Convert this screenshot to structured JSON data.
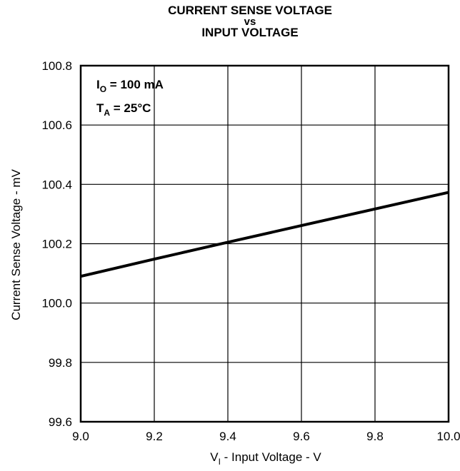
{
  "chart_data": {
    "type": "line",
    "title_lines": [
      "CURRENT SENSE VOLTAGE",
      "vs",
      "INPUT VOLTAGE"
    ],
    "xlabel": {
      "prefix": "V",
      "sub": "I",
      "rest": " - Input Voltage - V"
    },
    "ylabel": "Current Sense Voltage - mV",
    "xlim": [
      9.0,
      10.0
    ],
    "ylim": [
      99.6,
      100.8
    ],
    "x_ticks": [
      "9.0",
      "9.2",
      "9.4",
      "9.6",
      "9.8",
      "10.0"
    ],
    "y_ticks": [
      "99.6",
      "99.8",
      "100.0",
      "100.2",
      "100.4",
      "100.6",
      "100.8"
    ],
    "grid": true,
    "annotations": [
      {
        "main": "I",
        "sub": "O",
        "rest": " = 100 mA"
      },
      {
        "main": "T",
        "sub": "A",
        "rest": " = 25°C"
      }
    ],
    "series": [
      {
        "x": [
          9.0,
          9.2,
          9.4,
          9.6,
          9.8,
          10.0
        ],
        "y": [
          100.09,
          100.148,
          100.205,
          100.261,
          100.317,
          100.373
        ]
      }
    ]
  }
}
